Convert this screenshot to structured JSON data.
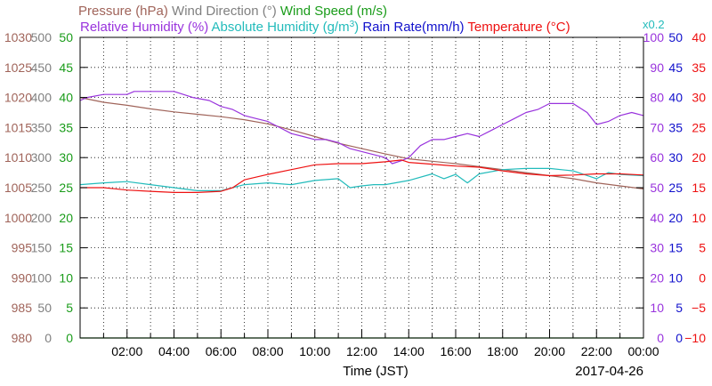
{
  "chart_data": {
    "type": "line",
    "date_label": "2017-04-26",
    "xlabel": "Time (JST)",
    "x_ticks": [
      "02:00",
      "04:00",
      "06:00",
      "08:00",
      "10:00",
      "12:00",
      "14:00",
      "16:00",
      "18:00",
      "20:00",
      "22:00",
      "00:00"
    ],
    "x_range_hours": [
      0,
      24
    ],
    "grid": true,
    "legend": [
      {
        "text": "Pressure (hPa)",
        "color": "#a0645a"
      },
      {
        "text": "Wind Direction (°)",
        "color": "#808080"
      },
      {
        "text": "Wind Speed (m/s)",
        "color": "#1a9c1a"
      },
      {
        "text": "Relative Humidity (%)",
        "color": "#9933dd"
      },
      {
        "text": "Absolute Humidity (g/m",
        "sup": "3",
        "close": ")",
        "color": "#22bbbb",
        "factor": "x0.2"
      },
      {
        "text": "Rain Rate(mm/h)",
        "color": "#1111cc"
      },
      {
        "text": "Temperature (°C)",
        "color": "#ee1111"
      }
    ],
    "axes": {
      "pressure": {
        "ticks": [
          "980",
          "985",
          "990",
          "995",
          "1000",
          "1005",
          "1010",
          "1015",
          "1020",
          "1025",
          "1030"
        ],
        "range": [
          980,
          1030
        ],
        "color": "#a0645a"
      },
      "wind_direction": {
        "ticks": [
          "0",
          "50",
          "100",
          "150",
          "200",
          "250",
          "300",
          "350",
          "400",
          "450",
          "500"
        ],
        "range": [
          0,
          500
        ],
        "color": "#808080"
      },
      "wind_speed": {
        "ticks": [
          "0",
          "5",
          "10",
          "15",
          "20",
          "25",
          "30",
          "35",
          "40",
          "45",
          "50"
        ],
        "range": [
          0,
          50
        ],
        "color": "#1a9c1a"
      },
      "relative_humidity": {
        "ticks": [
          "0",
          "10",
          "20",
          "30",
          "40",
          "50",
          "60",
          "70",
          "80",
          "90",
          "100"
        ],
        "range": [
          0,
          100
        ],
        "color": "#9933dd"
      },
      "rain_rate": {
        "ticks": [
          "0",
          "5",
          "10",
          "15",
          "20",
          "25",
          "30",
          "35",
          "40",
          "45",
          "50"
        ],
        "range": [
          0,
          50
        ],
        "color": "#1111cc"
      },
      "temperature": {
        "ticks": [
          "−10",
          "−5",
          "0",
          "5",
          "10",
          "15",
          "20",
          "25",
          "30",
          "35",
          "40"
        ],
        "range": [
          -10,
          40
        ],
        "color": "#ee1111"
      }
    },
    "series": [
      {
        "name": "Pressure (hPa)",
        "color": "#a0645a",
        "axis": "pressure",
        "x": [
          0,
          1,
          2,
          3,
          4,
          5,
          6,
          7,
          8,
          9,
          10,
          11,
          12,
          13,
          14,
          15,
          16,
          17,
          18,
          19,
          20,
          21,
          22,
          23,
          24
        ],
        "y": [
          1020,
          1019.2,
          1018.7,
          1018.1,
          1017.6,
          1017.2,
          1016.8,
          1016.3,
          1015.6,
          1014.6,
          1013.5,
          1012.4,
          1011.5,
          1010.6,
          1009.8,
          1009.4,
          1009,
          1008.5,
          1008,
          1007.5,
          1007,
          1006.5,
          1005.8,
          1005.3,
          1004.8
        ]
      },
      {
        "name": "Relative Humidity (%)",
        "color": "#9933dd",
        "axis": "relative_humidity",
        "x": [
          0,
          0.3,
          1,
          2,
          2.3,
          3,
          4,
          4.8,
          5.5,
          6,
          6.5,
          7,
          7.5,
          8,
          8.5,
          9,
          9.5,
          10,
          10.5,
          11,
          11.5,
          12,
          12.5,
          13,
          13.3,
          13.7,
          14,
          14.5,
          15,
          15.5,
          16,
          16.5,
          17,
          17.5,
          18,
          18.5,
          19,
          19.5,
          20,
          20.4,
          21,
          21.6,
          22,
          22.5,
          23,
          23.5,
          24
        ],
        "y": [
          79,
          80,
          81,
          81,
          82,
          82,
          82,
          80,
          79,
          77,
          76,
          74,
          73,
          72,
          70,
          68,
          67,
          66,
          66,
          65,
          63,
          62,
          61,
          60,
          58,
          59,
          60,
          64,
          66,
          66,
          67,
          68,
          67,
          69,
          71,
          73,
          75,
          76,
          78,
          78,
          78,
          75,
          71,
          72,
          74,
          75,
          74
        ]
      },
      {
        "name": "Absolute Humidity (g/m3)",
        "color": "#22bbbb",
        "axis": "wind_speed",
        "x": [
          0,
          1,
          2,
          3,
          4,
          5,
          6,
          7,
          8,
          9,
          10,
          11,
          11.5,
          12,
          12.5,
          13,
          14,
          15,
          15.5,
          16,
          16.5,
          17,
          18,
          19,
          20,
          21,
          22,
          22.5,
          23,
          24
        ],
        "y": [
          25.5,
          25.8,
          26,
          25.5,
          25,
          24.5,
          24.5,
          25.5,
          25.8,
          25.5,
          26.2,
          26.5,
          25,
          25.3,
          25.5,
          25.5,
          26.2,
          27.3,
          26.5,
          27.2,
          25.8,
          27.3,
          28,
          28.2,
          28.2,
          27.8,
          26.5,
          27.5,
          27.2,
          27
        ]
      },
      {
        "name": "Temperature (°C)",
        "color": "#ee1111",
        "axis": "temperature",
        "x": [
          0,
          1,
          2,
          3,
          4,
          5,
          6,
          6.5,
          7,
          8,
          9,
          10,
          11,
          12,
          13,
          13.7,
          14,
          15,
          16,
          17,
          18,
          19,
          20,
          21,
          22,
          23,
          24
        ],
        "y": [
          15,
          15,
          14.6,
          14.4,
          14.2,
          14.2,
          14.4,
          15,
          16.3,
          17.2,
          18,
          18.8,
          19,
          19,
          19.3,
          19.6,
          19.2,
          18.9,
          18.6,
          18.4,
          17.8,
          17.3,
          17,
          17.1,
          17.3,
          17.3,
          17.1
        ]
      },
      {
        "name": "Wind Speed (m/s)",
        "color": "#1a9c1a",
        "axis": "wind_speed",
        "x": [
          0,
          24
        ],
        "y": [
          0,
          0
        ]
      }
    ]
  }
}
